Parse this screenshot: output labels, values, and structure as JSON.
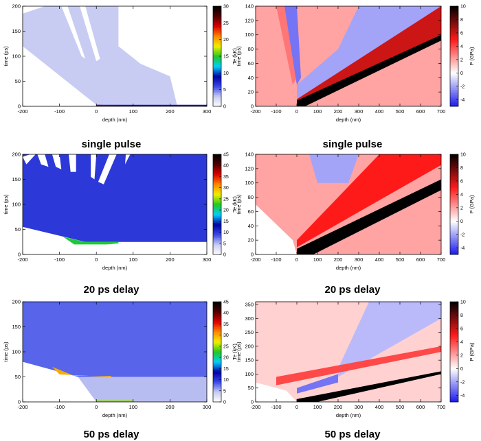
{
  "colors": {
    "temperature_map": [
      "#ffffff",
      "#c8ccf2",
      "#3848e8",
      "#0000a0",
      "#00d0ff",
      "#20c820",
      "#f0f000",
      "#ff8800",
      "#e00000",
      "#500000",
      "#000000"
    ],
    "pressure_map": [
      "#1818ee",
      "#ffffff",
      "#ff1a1a",
      "#000000"
    ]
  },
  "chart_data": [
    {
      "id": "te-single",
      "type": "heatmap",
      "title": "single pulse",
      "xlabel": "depth (nm)",
      "ylabel": "time (ps)",
      "colorbar_label": "Te (kK)",
      "xlim": [
        -200,
        300
      ],
      "ylim": [
        0,
        200
      ],
      "clim": [
        0,
        30
      ],
      "xticks": [
        -200,
        -100,
        0,
        100,
        200,
        300
      ],
      "yticks": [
        0,
        50,
        100,
        150,
        200
      ],
      "cticks": [
        0,
        5,
        10,
        15,
        20,
        25,
        30
      ],
      "colormap": "temperature_map",
      "regions": [
        {
          "value": 3,
          "points": [
            [
              -200,
              185
            ],
            [
              -200,
              120
            ],
            [
              0,
              3
            ],
            [
              300,
              3
            ],
            [
              300,
              200
            ],
            [
              -140,
              200
            ]
          ]
        },
        {
          "value": 0,
          "points": [
            [
              -200,
              200
            ],
            [
              -200,
              190
            ],
            [
              -160,
              200
            ]
          ]
        },
        {
          "value": 0,
          "points": [
            [
              -95,
              200
            ],
            [
              -78,
              200
            ],
            [
              -30,
              95
            ],
            [
              -40,
              100
            ]
          ]
        },
        {
          "value": 0,
          "points": [
            [
              -45,
              200
            ],
            [
              -30,
              200
            ],
            [
              10,
              95
            ],
            [
              0,
              90
            ]
          ]
        },
        {
          "value": 0,
          "points": [
            [
              60,
              200
            ],
            [
              300,
              200
            ],
            [
              300,
              0
            ],
            [
              220,
              0
            ],
            [
              200,
              60
            ],
            [
              120,
              85
            ],
            [
              60,
              120
            ]
          ]
        },
        {
          "value": 8,
          "points": [
            [
              0,
              3
            ],
            [
              300,
              3
            ],
            [
              300,
              0
            ],
            [
              0,
              0
            ]
          ]
        },
        {
          "value": 26,
          "points": [
            [
              0,
              3
            ],
            [
              60,
              2
            ],
            [
              60,
              0
            ],
            [
              0,
              0
            ]
          ]
        }
      ]
    },
    {
      "id": "p-single",
      "type": "heatmap",
      "title": "single pulse",
      "xlabel": "depth (nm)",
      "ylabel": "time (ps)",
      "colorbar_label": "P (GPa)",
      "xlim": [
        -200,
        700
      ],
      "ylim": [
        0,
        140
      ],
      "clim": [
        -5,
        10
      ],
      "xticks": [
        -200,
        -100,
        0,
        100,
        200,
        300,
        400,
        500,
        600,
        700
      ],
      "yticks": [
        0,
        20,
        40,
        60,
        80,
        100,
        120,
        140
      ],
      "cticks": [
        -4,
        -2,
        0,
        2,
        4,
        6,
        8,
        10
      ],
      "colormap": "pressure_map",
      "regions": [
        {
          "value": 2,
          "points": [
            [
              -200,
              0
            ],
            [
              700,
              0
            ],
            [
              700,
              140
            ],
            [
              -200,
              140
            ]
          ]
        },
        {
          "value": -2,
          "points": [
            [
              0,
              5
            ],
            [
              200,
              40
            ],
            [
              700,
              130
            ],
            [
              700,
              140
            ],
            [
              300,
              140
            ],
            [
              200,
              80
            ],
            [
              0,
              30
            ]
          ]
        },
        {
          "value": 3,
          "points": [
            [
              -100,
              140
            ],
            [
              -60,
              140
            ],
            [
              0,
              40
            ],
            [
              -20,
              30
            ]
          ]
        },
        {
          "value": -3,
          "points": [
            [
              -60,
              140
            ],
            [
              0,
              140
            ],
            [
              20,
              40
            ],
            [
              0,
              30
            ]
          ]
        },
        {
          "value": 6,
          "points": [
            [
              0,
              2
            ],
            [
              700,
              100
            ],
            [
              700,
              140
            ],
            [
              0,
              10
            ]
          ]
        },
        {
          "value": 10,
          "points": [
            [
              0,
              0
            ],
            [
              40,
              0
            ],
            [
              700,
              92
            ],
            [
              700,
              100
            ],
            [
              0,
              8
            ]
          ]
        }
      ]
    },
    {
      "id": "te-20",
      "type": "heatmap",
      "title": "20 ps delay",
      "xlabel": "depth (nm)",
      "ylabel": "time (ps)",
      "colorbar_label": "Te (kK)",
      "xlim": [
        -200,
        300
      ],
      "ylim": [
        0,
        200
      ],
      "clim": [
        0,
        45
      ],
      "xticks": [
        -200,
        -100,
        0,
        100,
        200,
        300
      ],
      "yticks": [
        0,
        50,
        100,
        150,
        200
      ],
      "cticks": [
        0,
        5,
        10,
        15,
        20,
        25,
        30,
        35,
        40,
        45
      ],
      "colormap": "temperature_map",
      "regions": [
        {
          "value": 10,
          "points": [
            [
              -200,
              55
            ],
            [
              -30,
              25
            ],
            [
              300,
              25
            ],
            [
              300,
              200
            ],
            [
              -200,
              200
            ]
          ]
        },
        {
          "value": 0,
          "points": [
            [
              -200,
              195
            ],
            [
              -180,
              200
            ],
            [
              -165,
              200
            ],
            [
              -190,
              180
            ]
          ]
        },
        {
          "value": 0,
          "points": [
            [
              -160,
              200
            ],
            [
              -140,
              200
            ],
            [
              -130,
              175
            ],
            [
              -150,
              180
            ]
          ]
        },
        {
          "value": 0,
          "points": [
            [
              -120,
              200
            ],
            [
              -100,
              200
            ],
            [
              -95,
              170
            ],
            [
              -110,
              175
            ]
          ]
        },
        {
          "value": 0,
          "points": [
            [
              -75,
              200
            ],
            [
              -55,
              200
            ],
            [
              -55,
              165
            ],
            [
              -70,
              165
            ]
          ]
        },
        {
          "value": 0,
          "points": [
            [
              -15,
              200
            ],
            [
              0,
              200
            ],
            [
              -5,
              150
            ],
            [
              -15,
              155
            ]
          ]
        },
        {
          "value": 0,
          "points": [
            [
              35,
              200
            ],
            [
              55,
              200
            ],
            [
              20,
              140
            ],
            [
              5,
              145
            ]
          ]
        },
        {
          "value": 0,
          "points": [
            [
              80,
              200
            ],
            [
              92,
              200
            ],
            [
              78,
              180
            ]
          ]
        },
        {
          "value": 0,
          "points": [
            [
              -200,
              0
            ],
            [
              -200,
              55
            ],
            [
              -30,
              25
            ],
            [
              0,
              0
            ]
          ]
        },
        {
          "value": 22,
          "points": [
            [
              -90,
              35
            ],
            [
              -30,
              25
            ],
            [
              60,
              25
            ],
            [
              60,
              20
            ],
            [
              -60,
              20
            ]
          ]
        },
        {
          "value": 0,
          "points": [
            [
              0,
              0
            ],
            [
              300,
              0
            ],
            [
              300,
              22
            ],
            [
              60,
              22
            ],
            [
              0,
              18
            ]
          ]
        }
      ]
    },
    {
      "id": "p-20",
      "type": "heatmap",
      "title": "20 ps delay",
      "xlabel": "depth (nm)",
      "ylabel": "time (ps)",
      "colorbar_label": "P (GPa)",
      "xlim": [
        -200,
        700
      ],
      "ylim": [
        0,
        140
      ],
      "clim": [
        -5,
        10
      ],
      "xticks": [
        -200,
        -100,
        0,
        100,
        200,
        300,
        400,
        500,
        600,
        700
      ],
      "yticks": [
        0,
        20,
        40,
        60,
        80,
        100,
        120,
        140
      ],
      "cticks": [
        -4,
        -2,
        0,
        2,
        4,
        6,
        8,
        10
      ],
      "colormap": "pressure_map",
      "regions": [
        {
          "value": 2,
          "points": [
            [
              -200,
              0
            ],
            [
              700,
              0
            ],
            [
              700,
              140
            ],
            [
              -200,
              140
            ]
          ]
        },
        {
          "value": 0,
          "points": [
            [
              -200,
              0
            ],
            [
              -200,
              70
            ],
            [
              -20,
              20
            ],
            [
              0,
              0
            ]
          ]
        },
        {
          "value": -2,
          "points": [
            [
              60,
              140
            ],
            [
              300,
              140
            ],
            [
              250,
              100
            ],
            [
              100,
              100
            ]
          ]
        },
        {
          "value": 5,
          "points": [
            [
              0,
              10
            ],
            [
              700,
              125
            ],
            [
              700,
              140
            ],
            [
              400,
              140
            ],
            [
              0,
              20
            ]
          ]
        },
        {
          "value": 10,
          "points": [
            [
              0,
              0
            ],
            [
              80,
              0
            ],
            [
              700,
              90
            ],
            [
              700,
              105
            ],
            [
              0,
              8
            ]
          ]
        }
      ]
    },
    {
      "id": "te-50",
      "type": "heatmap",
      "title": "50 ps delay",
      "xlabel": "depth (nm)",
      "ylabel": "time (ps)",
      "colorbar_label": "Te (kK)",
      "xlim": [
        -200,
        300
      ],
      "ylim": [
        0,
        200
      ],
      "clim": [
        0,
        45
      ],
      "xticks": [
        -200,
        -100,
        0,
        100,
        200,
        300
      ],
      "yticks": [
        0,
        50,
        100,
        150,
        200
      ],
      "cticks": [
        0,
        5,
        10,
        15,
        20,
        25,
        30,
        35,
        40,
        45
      ],
      "colormap": "temperature_map",
      "regions": [
        {
          "value": 8,
          "points": [
            [
              -200,
              80
            ],
            [
              -50,
              50
            ],
            [
              300,
              50
            ],
            [
              300,
              200
            ],
            [
              -200,
              200
            ]
          ]
        },
        {
          "value": 0,
          "points": [
            [
              -200,
              0
            ],
            [
              -200,
              80
            ],
            [
              -100,
              60
            ],
            [
              -50,
              50
            ],
            [
              0,
              0
            ]
          ]
        },
        {
          "value": 30,
          "points": [
            [
              -120,
              70
            ],
            [
              -60,
              52
            ],
            [
              40,
              52
            ],
            [
              40,
              50
            ],
            [
              -100,
              55
            ]
          ]
        },
        {
          "value": 5,
          "points": [
            [
              0,
              0
            ],
            [
              300,
              0
            ],
            [
              300,
              50
            ],
            [
              -50,
              50
            ]
          ]
        },
        {
          "value": 25,
          "points": [
            [
              0,
              0
            ],
            [
              100,
              0
            ],
            [
              100,
              3
            ],
            [
              0,
              3
            ]
          ]
        }
      ]
    },
    {
      "id": "p-50",
      "type": "heatmap",
      "title": "50 ps delay",
      "xlabel": "depth (nm)",
      "ylabel": "time (ps)",
      "colorbar_label": "P (GPa)",
      "xlim": [
        -200,
        700
      ],
      "ylim": [
        0,
        360
      ],
      "clim": [
        -5,
        10
      ],
      "xticks": [
        -200,
        -100,
        0,
        100,
        200,
        300,
        400,
        500,
        600,
        700
      ],
      "yticks": [
        0,
        50,
        100,
        150,
        200,
        250,
        300,
        350
      ],
      "cticks": [
        -4,
        -2,
        0,
        2,
        4,
        6,
        8,
        10
      ],
      "colormap": "pressure_map",
      "regions": [
        {
          "value": 1,
          "points": [
            [
              -200,
              0
            ],
            [
              700,
              0
            ],
            [
              700,
              360
            ],
            [
              -200,
              360
            ]
          ]
        },
        {
          "value": 0,
          "points": [
            [
              -200,
              0
            ],
            [
              -200,
              70
            ],
            [
              -50,
              40
            ],
            [
              0,
              0
            ]
          ]
        },
        {
          "value": -1.5,
          "points": [
            [
              200,
              90
            ],
            [
              700,
              300
            ],
            [
              700,
              360
            ],
            [
              350,
              360
            ],
            [
              200,
              120
            ]
          ]
        },
        {
          "value": 4,
          "points": [
            [
              -100,
              60
            ],
            [
              700,
              180
            ],
            [
              700,
              200
            ],
            [
              -100,
              90
            ]
          ]
        },
        {
          "value": -3,
          "points": [
            [
              0,
              30
            ],
            [
              200,
              70
            ],
            [
              200,
              100
            ],
            [
              0,
              50
            ]
          ]
        },
        {
          "value": 10,
          "points": [
            [
              0,
              0
            ],
            [
              100,
              0
            ],
            [
              700,
              100
            ],
            [
              700,
              110
            ],
            [
              0,
              10
            ]
          ]
        }
      ]
    }
  ]
}
